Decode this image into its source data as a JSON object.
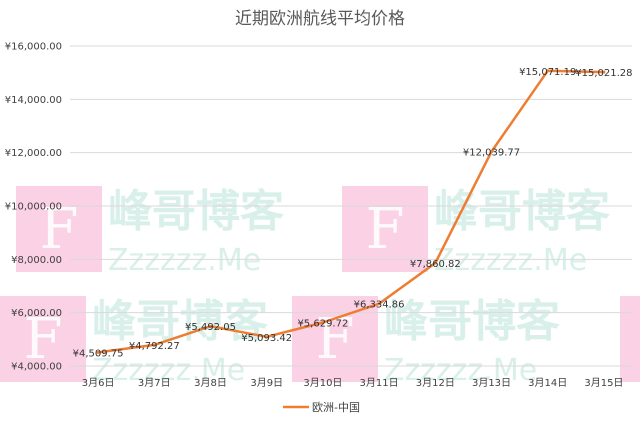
{
  "chart_data": {
    "type": "line",
    "title": "近期欧洲航线平均价格",
    "categories": [
      "3月6日",
      "3月7日",
      "3月8日",
      "3月9日",
      "3月10日",
      "3月11日",
      "3月12日",
      "3月13日",
      "3月14日",
      "3月15日"
    ],
    "series": [
      {
        "name": "欧洲-中国",
        "color": "#ED7D31",
        "values": [
          4509.75,
          4792.27,
          5492.05,
          5093.42,
          5629.72,
          6334.86,
          7860.82,
          12039.77,
          15071.19,
          15021.28
        ],
        "labels": [
          "¥4,509.75",
          "¥4,792.27",
          "¥5,492.05",
          "¥5,093.42",
          "¥5,629.72",
          "¥6,334.86",
          "¥7,860.82",
          "¥12,039.77",
          "¥15,071.19",
          "¥15,021.28"
        ]
      }
    ],
    "yticks": [
      4000,
      6000,
      8000,
      10000,
      12000,
      14000,
      16000
    ],
    "ytick_labels": [
      "¥4,000.00",
      "¥6,000.00",
      "¥8,000.00",
      "¥10,000.00",
      "¥12,000.00",
      "¥14,000.00",
      "¥16,000.00"
    ],
    "ylim": [
      4000,
      16000
    ],
    "grid": true,
    "legend": "bottom"
  },
  "watermark": {
    "letter": "F",
    "brand": "峰哥博客",
    "domain": "Zzzzzz.Me",
    "box_color": "#F9C9E0",
    "text_color": "#D9F0EA"
  }
}
